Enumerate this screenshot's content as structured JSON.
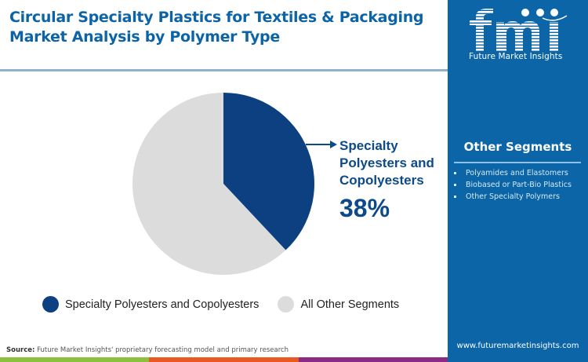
{
  "header": {
    "title_line1": "Circular Specialty Plastics for Textiles & Packaging",
    "title_line2": "Market Analysis by Polymer Type"
  },
  "chart_data": {
    "type": "pie",
    "title": "Circular Specialty Plastics for Textiles & Packaging Market Analysis by Polymer Type",
    "categories": [
      "Specialty Polyesters and Copolyesters",
      "All Other Segments"
    ],
    "values": [
      38,
      62
    ],
    "unit": "%",
    "colors": [
      "#0d4080",
      "#dcdcdc"
    ],
    "start_angle_deg": 0,
    "direction": "clockwise",
    "annotations": [
      {
        "label": "Specialty Polyesters and Copolyesters",
        "value": "38%"
      }
    ],
    "legend_position": "bottom"
  },
  "callout": {
    "label": "Specialty Polyesters and Copolyesters",
    "value": "38%"
  },
  "legend": {
    "items": [
      {
        "label": "Specialty Polyesters and Copolyesters",
        "color": "#0d4080"
      },
      {
        "label": "All Other Segments",
        "color": "#dcdcdc"
      }
    ]
  },
  "footer": {
    "source_label": "Source:",
    "source_text": " Future Market Insights' proprietary forecasting model and primary research",
    "color_bars": [
      "#8bc043",
      "#e85a20",
      "#8b2b86"
    ]
  },
  "panel": {
    "logo_text": "fmi",
    "logo_subtitle": "Future Market Insights",
    "segments_title": "Other Segments",
    "segments": [
      "Polyamides and Elastomers",
      "Biobased or Part-Bio Plastics",
      "Other Specialty Polymers"
    ],
    "url": "www.futuremarketinsights.com",
    "background": "#0b65a6"
  }
}
